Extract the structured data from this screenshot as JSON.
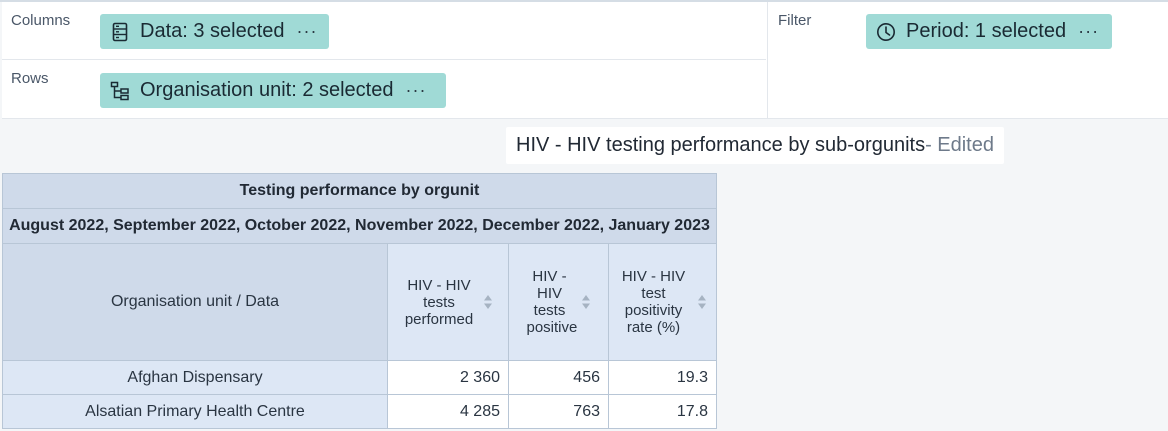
{
  "layout": {
    "columns": {
      "label": "Columns",
      "chip": {
        "text": "Data: 3 selected",
        "icon": "data-icon",
        "more": "···"
      }
    },
    "rows": {
      "label": "Rows",
      "chip": {
        "text": "Organisation unit: 2 selected",
        "icon": "org-tree-icon",
        "more": "···"
      }
    },
    "filter": {
      "label": "Filter",
      "chip": {
        "text": "Period: 1 selected",
        "icon": "clock-icon",
        "more": "···"
      }
    }
  },
  "visualization": {
    "title": "HIV - HIV testing performance by sub-orgunits",
    "edited_suffix": " - Edited"
  },
  "table": {
    "title": "Testing performance by orgunit",
    "period": "August 2022, September 2022, October 2022, November 2022, December 2022, January 2023",
    "corner": "Organisation unit / Data",
    "columns": [
      {
        "label": "HIV - HIV tests performed"
      },
      {
        "label": "HIV - HIV tests positive"
      },
      {
        "label": "HIV - HIV test positivity rate (%)"
      }
    ],
    "rows": [
      {
        "label": "Afghan Dispensary",
        "values": [
          "2 360",
          "456",
          "19.3"
        ]
      },
      {
        "label": "Alsatian Primary Health Centre",
        "values": [
          "4 285",
          "763",
          "17.8"
        ]
      }
    ]
  },
  "colors": {
    "chip": "#a0dad6",
    "header": "#cfdaea",
    "subheader": "#dde7f5",
    "border": "#b8c6d6"
  }
}
